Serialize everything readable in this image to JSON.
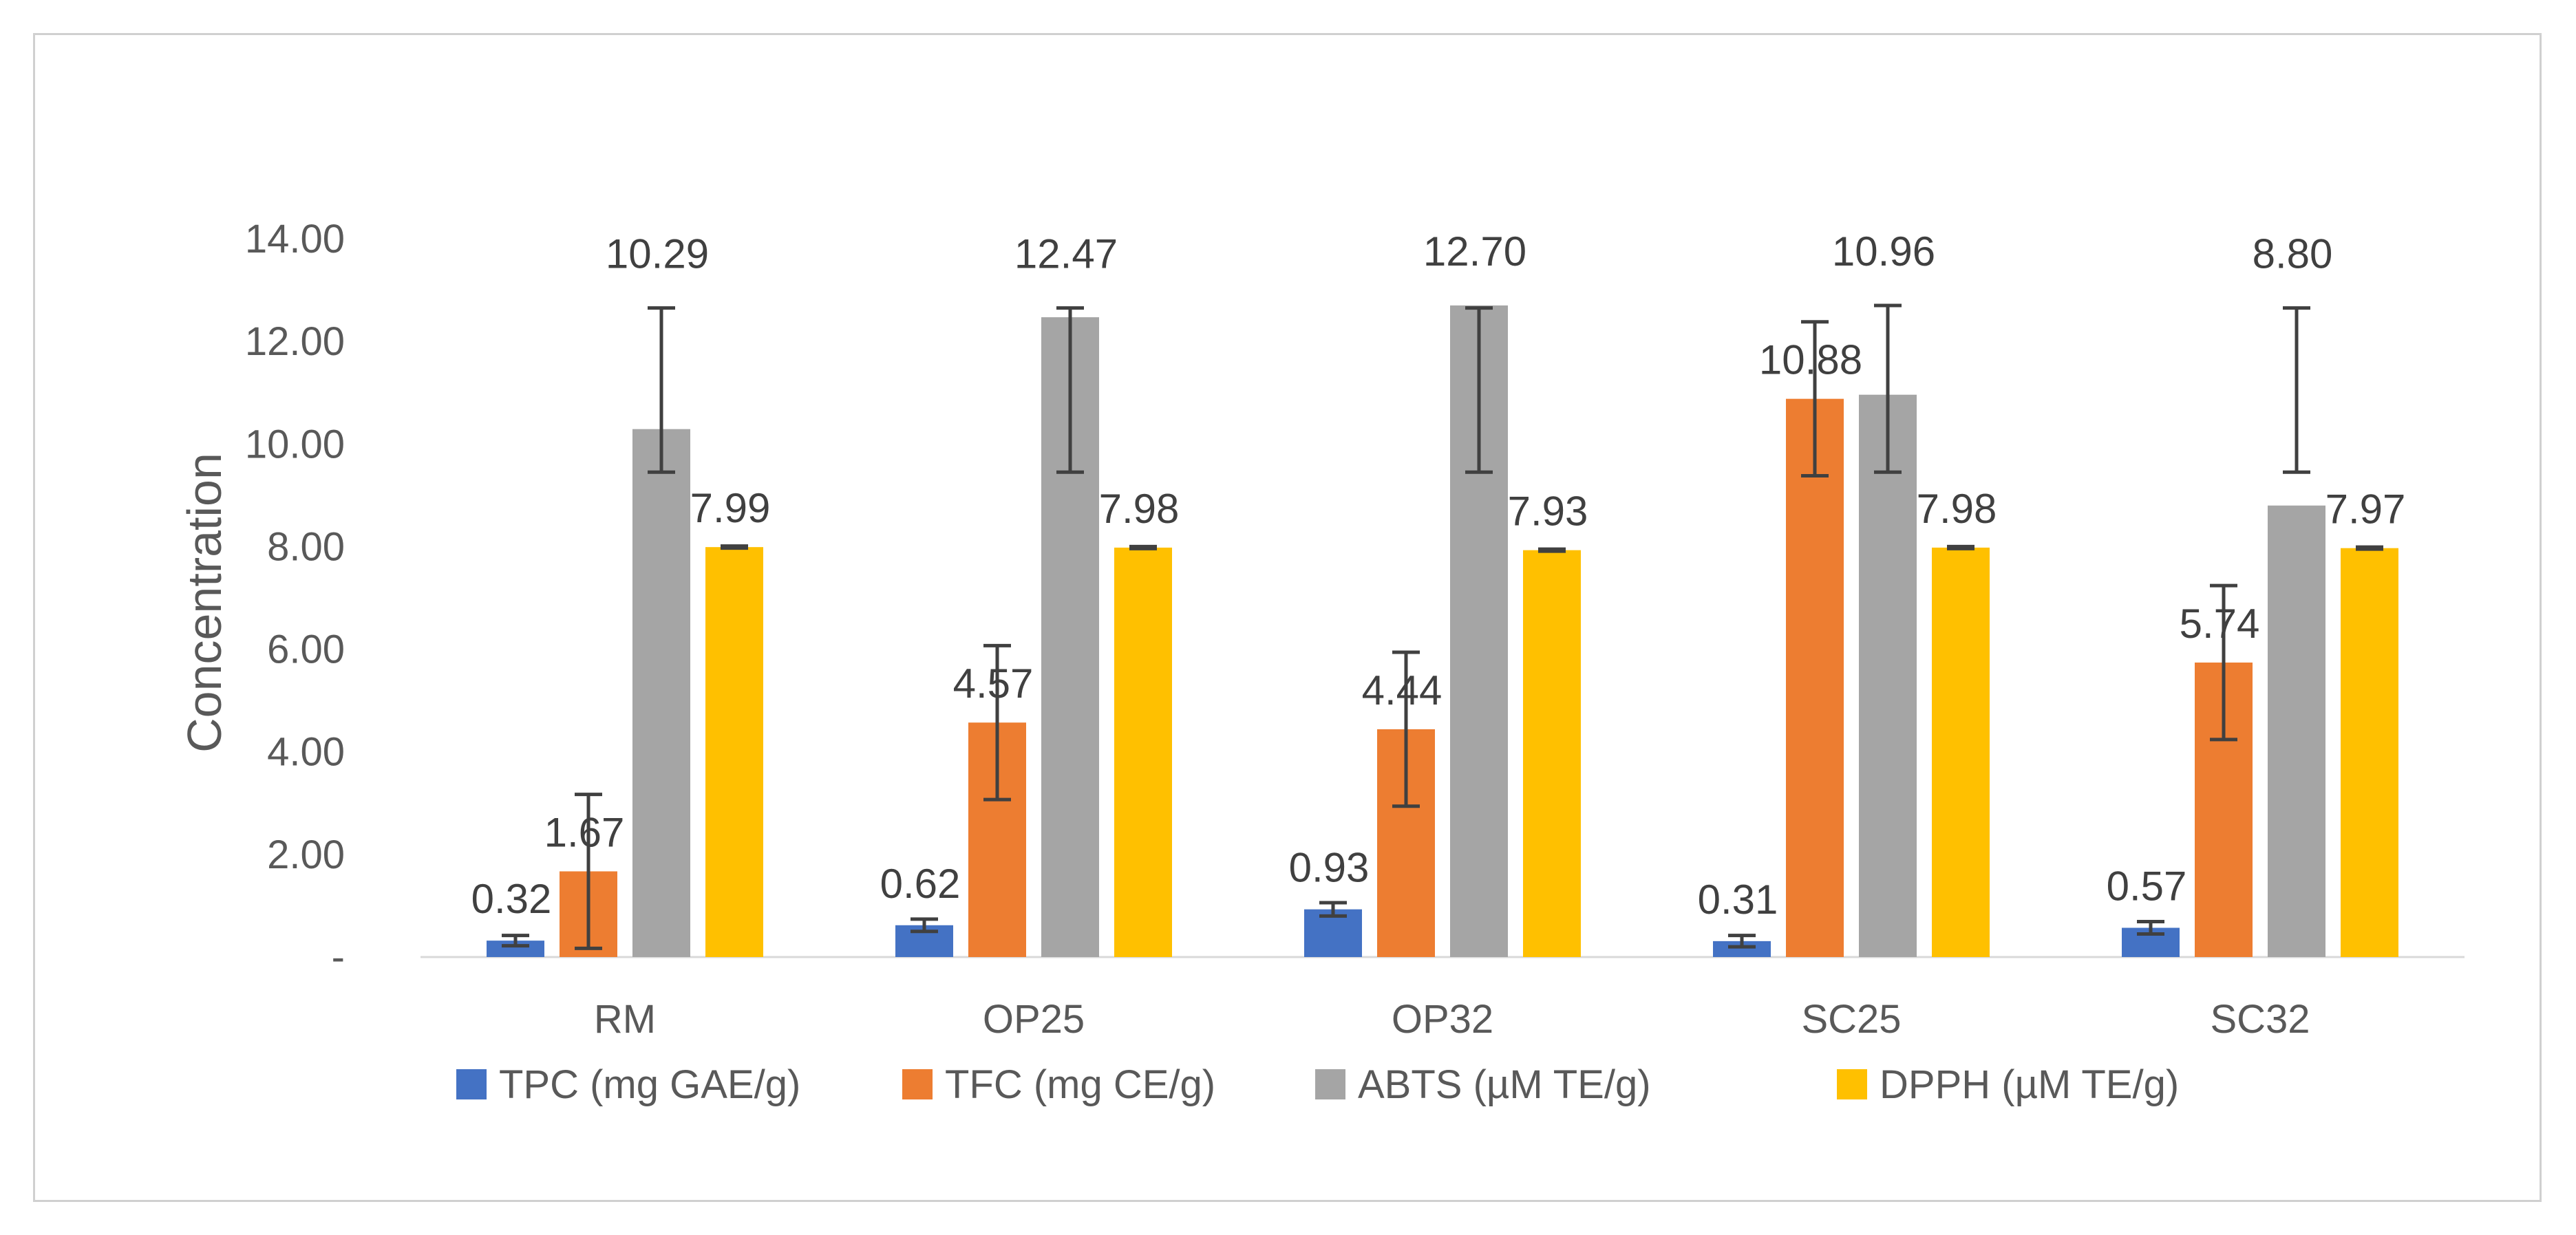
{
  "chart_data": {
    "type": "bar",
    "title": "",
    "xlabel": "",
    "ylabel": "Concentration",
    "ylim": [
      0,
      14
    ],
    "y_ticks": [
      {
        "value": 0,
        "label": "-"
      },
      {
        "value": 2,
        "label": "2.00"
      },
      {
        "value": 4,
        "label": "4.00"
      },
      {
        "value": 6,
        "label": "6.00"
      },
      {
        "value": 8,
        "label": "8.00"
      },
      {
        "value": 10,
        "label": "10.00"
      },
      {
        "value": 12,
        "label": "12.00"
      },
      {
        "value": 14,
        "label": "14.00"
      }
    ],
    "grid": false,
    "legend_position": "bottom",
    "categories": [
      "RM",
      "OP25",
      "OP32",
      "SC25",
      "SC32"
    ],
    "series": [
      {
        "name": "TPC (mg GAE/g)",
        "color": "#4472C4",
        "values": [
          0.32,
          0.62,
          0.93,
          0.31,
          0.57
        ],
        "labels": [
          "0.32",
          "0.62",
          "0.93",
          "0.31",
          "0.57"
        ],
        "err_low": [
          0.22,
          0.5,
          0.8,
          0.2,
          0.45
        ],
        "err_high": [
          0.42,
          0.74,
          1.06,
          0.42,
          0.69
        ]
      },
      {
        "name": "TFC (mg CE/g)",
        "color": "#ED7D31",
        "values": [
          1.67,
          4.57,
          4.44,
          10.88,
          5.74
        ],
        "labels": [
          "1.67",
          "4.57",
          "4.44",
          "10.88",
          "5.74"
        ],
        "err_low": [
          0.17,
          3.07,
          2.94,
          9.38,
          4.24
        ],
        "err_high": [
          3.17,
          6.07,
          5.94,
          12.38,
          7.24
        ]
      },
      {
        "name": "ABTS (µM TE/g)",
        "color": "#A5A5A5",
        "values": [
          10.29,
          12.47,
          12.7,
          10.96,
          8.8
        ],
        "labels": [
          "10.29",
          "12.47",
          "12.70",
          "10.96",
          "8.80"
        ],
        "err_low": [
          9.45,
          9.45,
          9.45,
          9.45,
          9.45
        ],
        "err_high": [
          12.65,
          12.65,
          12.65,
          12.7,
          12.65
        ]
      },
      {
        "name": "DPPH (µM TE/g)",
        "color": "#FFC000",
        "values": [
          7.99,
          7.98,
          7.93,
          7.98,
          7.97
        ],
        "labels": [
          "7.99",
          "7.98",
          "7.93",
          "7.98",
          "7.97"
        ],
        "err_low": [
          7.97,
          7.96,
          7.91,
          7.96,
          7.95
        ],
        "err_high": [
          8.01,
          8.0,
          7.95,
          8.0,
          7.99
        ]
      }
    ]
  }
}
